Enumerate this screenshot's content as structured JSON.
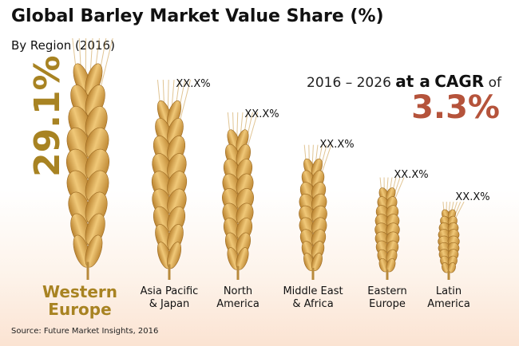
{
  "title": "Global Barley Market Value Share (%)",
  "subtitle": "By Region (2016)",
  "cagr": {
    "period": "2016 – 2026",
    "at_a": "at a",
    "cagr_label": "CAGR",
    "of": "of",
    "value": "3.3%"
  },
  "source": "Source: Future Market Insights, 2016",
  "colors": {
    "lead": "#a88322",
    "cagr": "#b5533b",
    "grain": "#d9a54c"
  },
  "chart_data": {
    "type": "bar",
    "categories": [
      [
        "Western",
        "Europe"
      ],
      [
        "Asia Pacific",
        "& Japan"
      ],
      [
        "North",
        "America"
      ],
      [
        "Middle East",
        "& Africa"
      ],
      [
        "Eastern",
        "Europe"
      ],
      [
        "Latin",
        "America"
      ]
    ],
    "value_labels": [
      "29.1%",
      "XX.X%",
      "XX.X%",
      "XX.X%",
      "XX.X%",
      "XX.X%"
    ],
    "values": [
      29.1,
      24,
      20,
      16,
      12,
      9
    ],
    "xlabel": "",
    "ylabel": ""
  }
}
